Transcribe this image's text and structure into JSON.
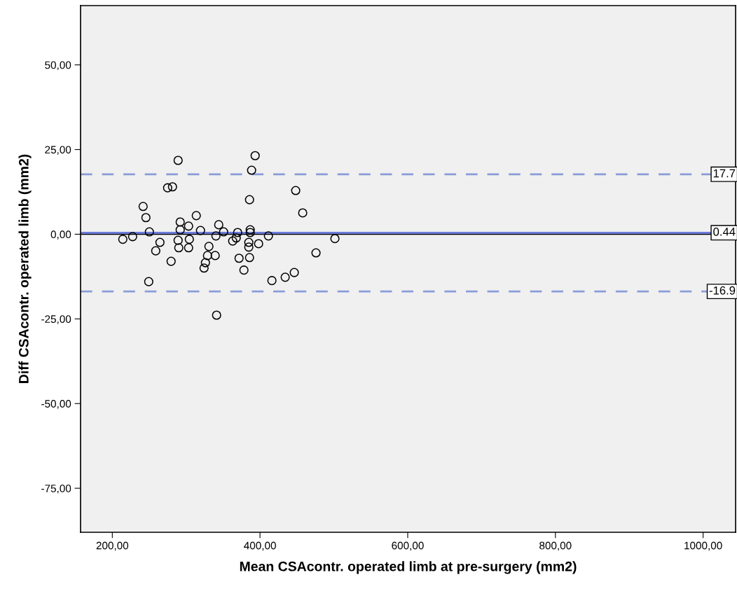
{
  "chart_data": {
    "type": "scatter",
    "xlabel": "Mean CSAcontr. operated limb at pre-surgery (mm2)",
    "ylabel": "Diff CSAcontr. operated limb (mm2)",
    "x": [
      214.2,
      227.5,
      241.7,
      245.5,
      250.2,
      264.5,
      258.8,
      249.3,
      274.9,
      281.5,
      289.1,
      279.6,
      291.9,
      291.9,
      289.1,
      290.0,
      303.3,
      304.3,
      303.3,
      313.7,
      319.4,
      341.2,
      330.8,
      328.9,
      326.1,
      324.2,
      339.3,
      340.3,
      344.1,
      350.7,
      363.0,
      367.8,
      369.7,
      371.6,
      393.4,
      388.6,
      385.8,
      386.7,
      386.7,
      384.8,
      384.8,
      398.1,
      411.4,
      385.8,
      378.2,
      416.1,
      434.1,
      446.4,
      448.3,
      457.8,
      475.8,
      501.4
    ],
    "values": [
      -1.5,
      -0.7,
      8.2,
      4.9,
      0.7,
      -2.4,
      -4.9,
      -14.0,
      13.7,
      14.0,
      21.8,
      -8.0,
      3.6,
      1.3,
      -1.8,
      -4.0,
      2.4,
      -1.5,
      -4.0,
      5.5,
      1.1,
      -23.9,
      -3.6,
      -6.3,
      -8.4,
      -10.0,
      -6.3,
      -0.5,
      2.8,
      0.7,
      -2.0,
      -1.1,
      0.5,
      -7.1,
      23.2,
      18.9,
      10.2,
      1.3,
      0.5,
      -2.4,
      -3.8,
      -2.8,
      -0.5,
      -6.9,
      -10.6,
      -13.7,
      -12.7,
      -11.3,
      12.9,
      6.3,
      -5.5,
      -1.3
    ],
    "color": "#000000",
    "marker": "circle",
    "xlim": [
      157,
      1044
    ],
    "ylim": [
      -88,
      67.5
    ],
    "xticks": [
      {
        "value": 200,
        "label": "200,00"
      },
      {
        "value": 400,
        "label": "400,00"
      },
      {
        "value": 600,
        "label": "600,00"
      },
      {
        "value": 800,
        "label": "800,00"
      },
      {
        "value": 1000,
        "label": "1000,00"
      }
    ],
    "yticks": [
      {
        "value": -75,
        "label": "-75,00"
      },
      {
        "value": -50,
        "label": "-50,00"
      },
      {
        "value": -25,
        "label": "-25,00"
      },
      {
        "value": 0,
        "label": "0,00"
      },
      {
        "value": 25,
        "label": "25,00"
      },
      {
        "value": 50,
        "label": "50,00"
      }
    ],
    "ref_lines": [
      {
        "axis": "y",
        "value": 0,
        "label": null,
        "color": "#000000",
        "line_style": "solid"
      },
      {
        "axis": "y",
        "value": 17.7,
        "label": "17.7",
        "color": "#8a9cd8",
        "line_style": "dashed"
      },
      {
        "axis": "y",
        "value": 0.44,
        "label": "0.44",
        "color": "#6c7de0",
        "line_style": "solid"
      },
      {
        "axis": "y",
        "value": -16.9,
        "label": "-16.9",
        "color": "#8a9cd8",
        "line_style": "dashed"
      }
    ],
    "grid": false
  }
}
